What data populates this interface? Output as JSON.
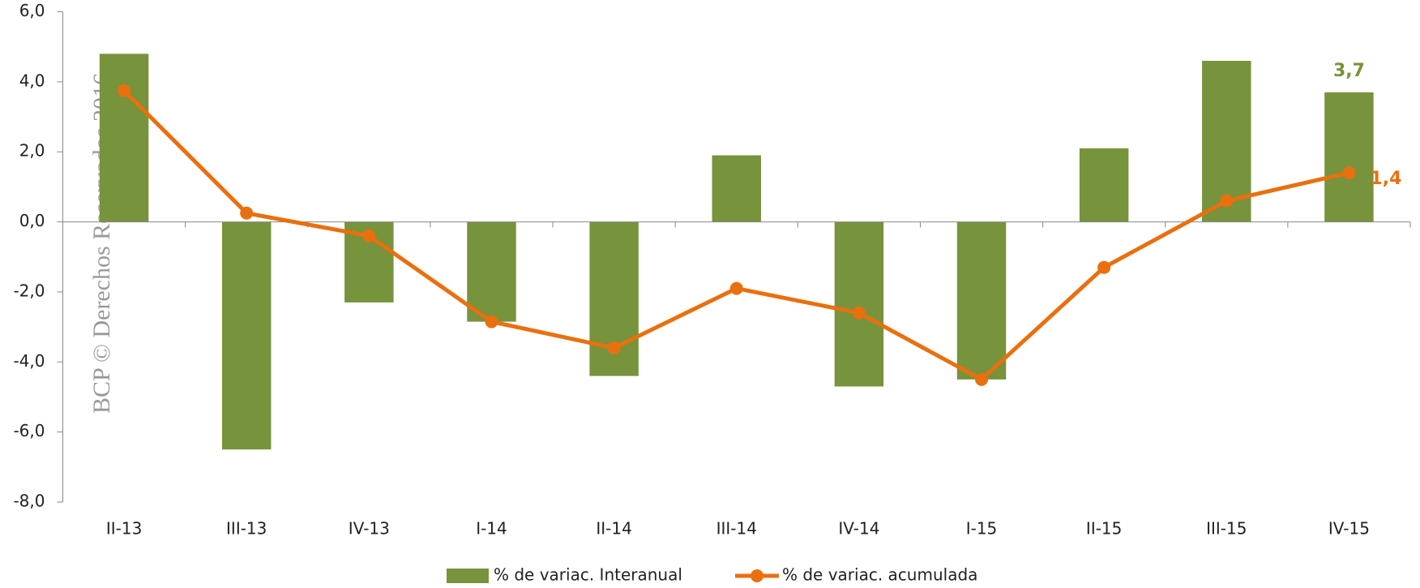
{
  "chart_data": {
    "type": "bar_line",
    "categories": [
      "II-13",
      "III-13",
      "IV-13",
      "I-14",
      "II-14",
      "III-14",
      "IV-14",
      "I-15",
      "II-15",
      "III-15",
      "IV-15"
    ],
    "series": [
      {
        "name": "% de variac. Interanual",
        "type": "bar",
        "color": "#77933c",
        "values": [
          4.8,
          -6.5,
          -2.3,
          -2.85,
          -4.4,
          1.9,
          -4.7,
          -4.5,
          2.1,
          4.6,
          3.7
        ],
        "value_labels": [
          null,
          null,
          null,
          null,
          null,
          null,
          null,
          null,
          null,
          null,
          "3,7"
        ]
      },
      {
        "name": "% de variac. acumulada",
        "type": "line",
        "color": "#e8700f",
        "values": [
          3.75,
          0.25,
          -0.4,
          -2.85,
          -3.6,
          -1.9,
          -2.6,
          -4.5,
          -1.3,
          0.6,
          1.4
        ],
        "value_labels": [
          null,
          null,
          null,
          null,
          null,
          null,
          null,
          null,
          null,
          null,
          "1,4"
        ]
      }
    ],
    "ylim": [
      -8,
      6
    ],
    "yticks": [
      {
        "value": -8,
        "label": "-8,0"
      },
      {
        "value": -6,
        "label": "-6,0"
      },
      {
        "value": -4,
        "label": "-4,0"
      },
      {
        "value": -2,
        "label": "-2,0"
      },
      {
        "value": 0,
        "label": "0,0"
      },
      {
        "value": 2,
        "label": "2,0"
      },
      {
        "value": 4,
        "label": "4,0"
      },
      {
        "value": 6,
        "label": "6,0"
      }
    ],
    "annotation": "BCP © Derechos Reservados 2016",
    "legend": "bottom"
  }
}
